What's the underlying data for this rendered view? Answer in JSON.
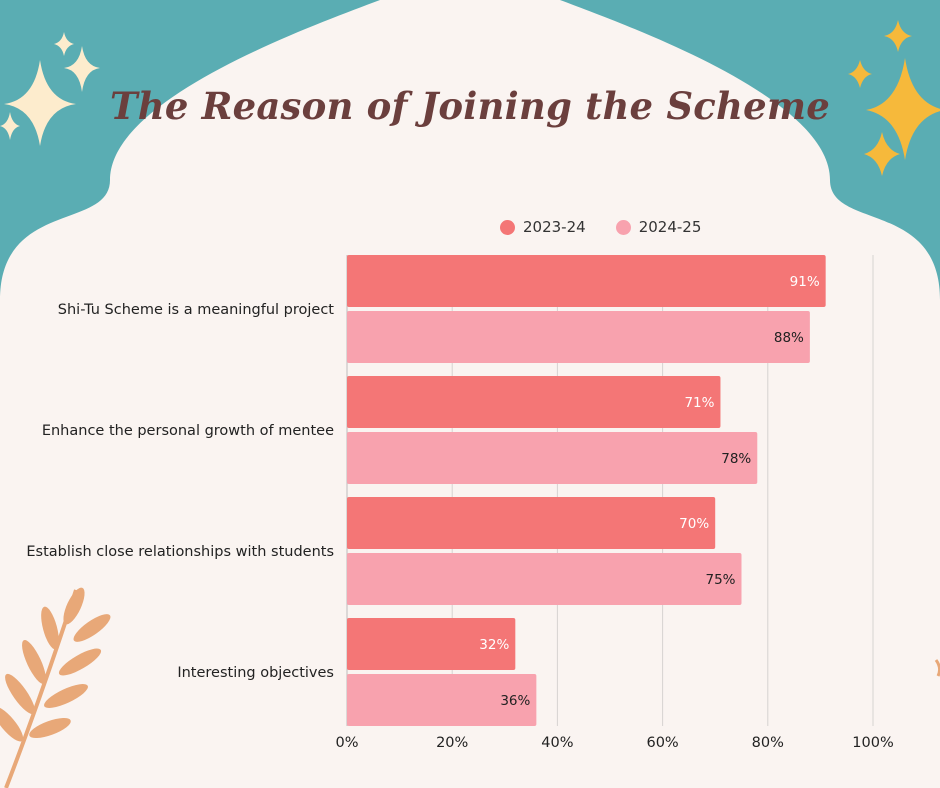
{
  "header": {
    "title": "The Reason of Joining the Scheme"
  },
  "colors": {
    "background_teal": "#5aadb3",
    "panel": "#faf4f1",
    "series_2023": "#f47676",
    "series_2024": "#f8a2ae",
    "title": "#6b3f3d",
    "sparkle_cream": "#fdeccd",
    "sparkle_gold": "#f6b93b",
    "leaf": "#e8a878"
  },
  "chart_data": {
    "type": "bar",
    "orientation": "horizontal",
    "title": "The Reason of Joining the Scheme",
    "categories": [
      "Shi-Tu Scheme is a meaningful project",
      "Enhance the personal growth of mentee",
      "Establish close relationships with students",
      "Interesting objectives"
    ],
    "series": [
      {
        "name": "2023-24",
        "values": [
          91,
          71,
          70,
          32
        ],
        "labels": [
          "91%",
          "71%",
          "70%",
          "32%"
        ]
      },
      {
        "name": "2024-25",
        "values": [
          88,
          78,
          75,
          36
        ],
        "labels": [
          "88%",
          "78%",
          "75%",
          "36%"
        ]
      }
    ],
    "x_ticks": [
      "0%",
      "20%",
      "40%",
      "60%",
      "80%",
      "100%"
    ],
    "xlim": [
      0,
      100
    ],
    "grid": "vertical",
    "legend_position": "top-right"
  }
}
